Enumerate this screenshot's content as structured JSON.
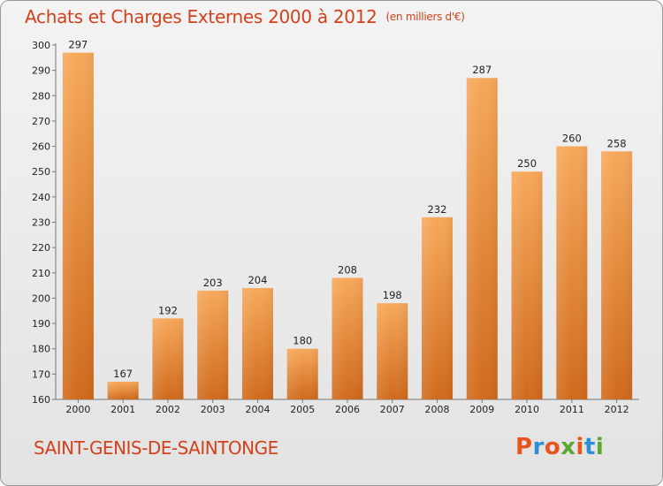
{
  "title": "Achats et Charges Externes 2000 à 2012",
  "unit": "(en milliers d'€)",
  "commune": "SAINT-GENIS-DE-SAINTONGE",
  "logo": {
    "text": "Proxiti",
    "colors": [
      "#e8541c",
      "#2c8fd4",
      "#e8541c",
      "#5aa832",
      "#e8541c",
      "#2c8fd4",
      "#5aa832"
    ]
  },
  "colors": {
    "title": "#d0421b",
    "bar_top": "#f7a85a",
    "bar_bottom": "#d06a1c"
  },
  "chart_data": {
    "type": "bar",
    "title": "Achats et Charges Externes 2000 à 2012",
    "subtitle": "(en milliers d'€)",
    "categories": [
      "2000",
      "2001",
      "2002",
      "2003",
      "2004",
      "2005",
      "2006",
      "2007",
      "2008",
      "2009",
      "2010",
      "2011",
      "2012"
    ],
    "values": [
      297,
      167,
      192,
      203,
      204,
      180,
      208,
      198,
      232,
      287,
      250,
      260,
      258
    ],
    "ylim": [
      160,
      300
    ],
    "yticks": [
      160,
      170,
      180,
      190,
      200,
      210,
      220,
      230,
      240,
      250,
      260,
      270,
      280,
      290,
      300
    ],
    "grid": false,
    "xlabel": "",
    "ylabel": ""
  }
}
